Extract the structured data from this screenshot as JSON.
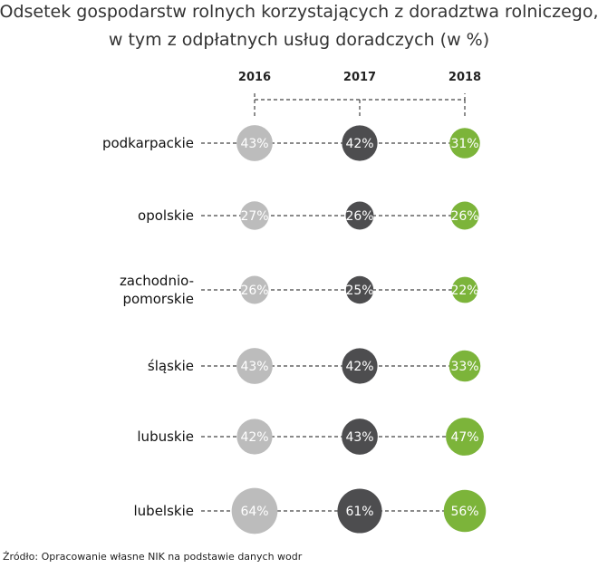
{
  "chart_data": {
    "type": "bubble",
    "title": [
      "Odsetek gospodarstw rolnych korzystających z doradztwa rolniczego,",
      "w tym z odpłatnych usług doradczych (w %)"
    ],
    "years": [
      "2016",
      "2017",
      "2018"
    ],
    "categories": [
      [
        "podkarpackie"
      ],
      [
        "opolskie"
      ],
      [
        "zachodnio-",
        "pomorskie"
      ],
      [
        "śląskie"
      ],
      [
        "lubuskie"
      ],
      [
        "lubelskie"
      ]
    ],
    "values": [
      [
        43,
        42,
        31
      ],
      [
        27,
        26,
        26
      ],
      [
        26,
        25,
        22
      ],
      [
        43,
        42,
        33
      ],
      [
        42,
        43,
        47
      ],
      [
        64,
        61,
        56
      ]
    ],
    "value_suffix": "%",
    "colors": [
      "#bcbcbc",
      "#4d4d4f",
      "#7cb43a"
    ]
  },
  "source": "Źródło: Opracowanie własne NIK na podstawie danych wodr"
}
